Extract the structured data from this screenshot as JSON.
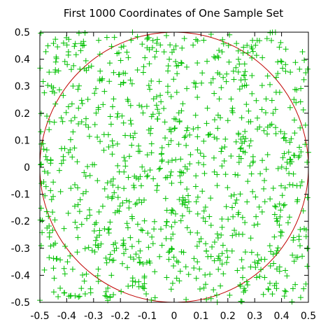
{
  "chart_data": {
    "type": "scatter",
    "title": "First 1000 Coordinates of One Sample Set",
    "xlabel": "",
    "ylabel": "",
    "xlim": [
      -0.5,
      0.5
    ],
    "ylim": [
      -0.5,
      0.5
    ],
    "grid": false,
    "marker": "+",
    "point_count": 1000,
    "point_color": "#00c000",
    "x_ticks": [
      -0.5,
      -0.4,
      -0.3,
      -0.2,
      -0.1,
      0,
      0.1,
      0.2,
      0.3,
      0.4,
      0.5
    ],
    "x_tick_labels": [
      "-0.5",
      "-0.4",
      "-0.3",
      "-0.2",
      "-0.1",
      "0",
      "0.1",
      "0.2",
      "0.3",
      "0.4",
      "0.5"
    ],
    "y_ticks": [
      0.5,
      0.4,
      0.3,
      0.2,
      0.1,
      0,
      -0.1,
      -0.2,
      -0.3,
      -0.4,
      -0.5
    ],
    "y_tick_labels": [
      "0.5",
      "0.4",
      "0.3",
      "0.2",
      "0.1",
      "0",
      "-0.1",
      "-0.2",
      "-0.3",
      "-0.4",
      "-0.5"
    ],
    "circle": {
      "center": [
        0,
        0
      ],
      "radius": 0.5,
      "color": "#c00000"
    }
  }
}
